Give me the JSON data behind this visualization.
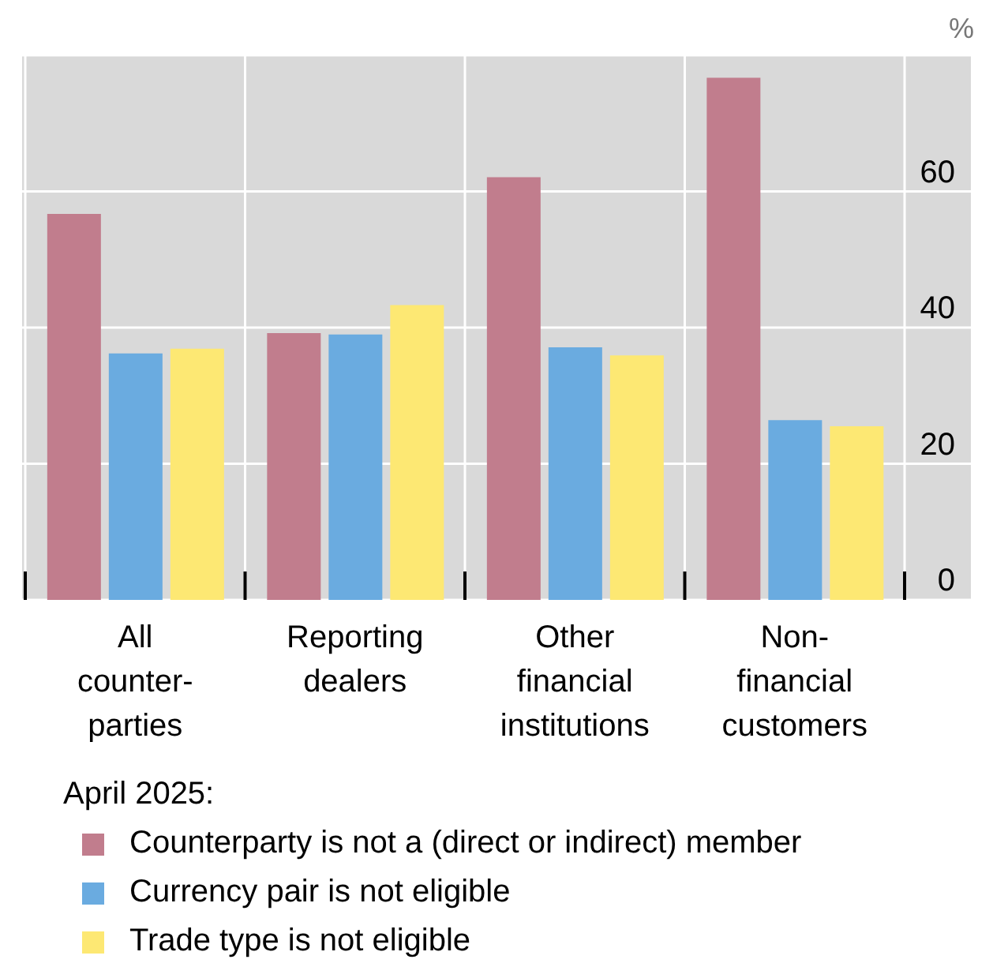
{
  "chart_data": {
    "type": "bar",
    "ylabel": "%",
    "legend_title": "April 2025:",
    "categories": [
      "All counter-parties",
      "Reporting dealers",
      "Other financial institutions",
      "Non-financial customers"
    ],
    "series": [
      {
        "name": "Counterparty is not a (direct or indirect) member",
        "color": "#c17d8d",
        "values": [
          56.7,
          39.2,
          62.1,
          76.7
        ]
      },
      {
        "name": "Currency pair is not eligible",
        "color": "#6aabe0",
        "values": [
          36.2,
          39.0,
          37.1,
          26.4
        ]
      },
      {
        "name": "Trade type is not eligible",
        "color": "#fde873",
        "values": [
          36.9,
          43.3,
          35.9,
          25.5
        ]
      }
    ],
    "ylim": [
      0,
      80
    ],
    "yticks": [
      0,
      20,
      40,
      60
    ],
    "grid": true,
    "legend": "bottom"
  }
}
